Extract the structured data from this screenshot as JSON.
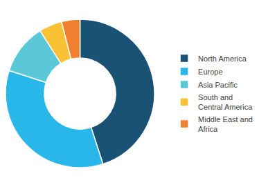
{
  "chart_data": {
    "type": "donut",
    "categories": [
      "North America",
      "Europe",
      "Asia Pacific",
      "South and\nCentral America",
      "Middle East and\nAfrica"
    ],
    "values": [
      45,
      35,
      11,
      5,
      4
    ],
    "colors": [
      "#1a5276",
      "#29b6e8",
      "#5bc8d8",
      "#f9c234",
      "#f08030"
    ],
    "legend": "right"
  }
}
